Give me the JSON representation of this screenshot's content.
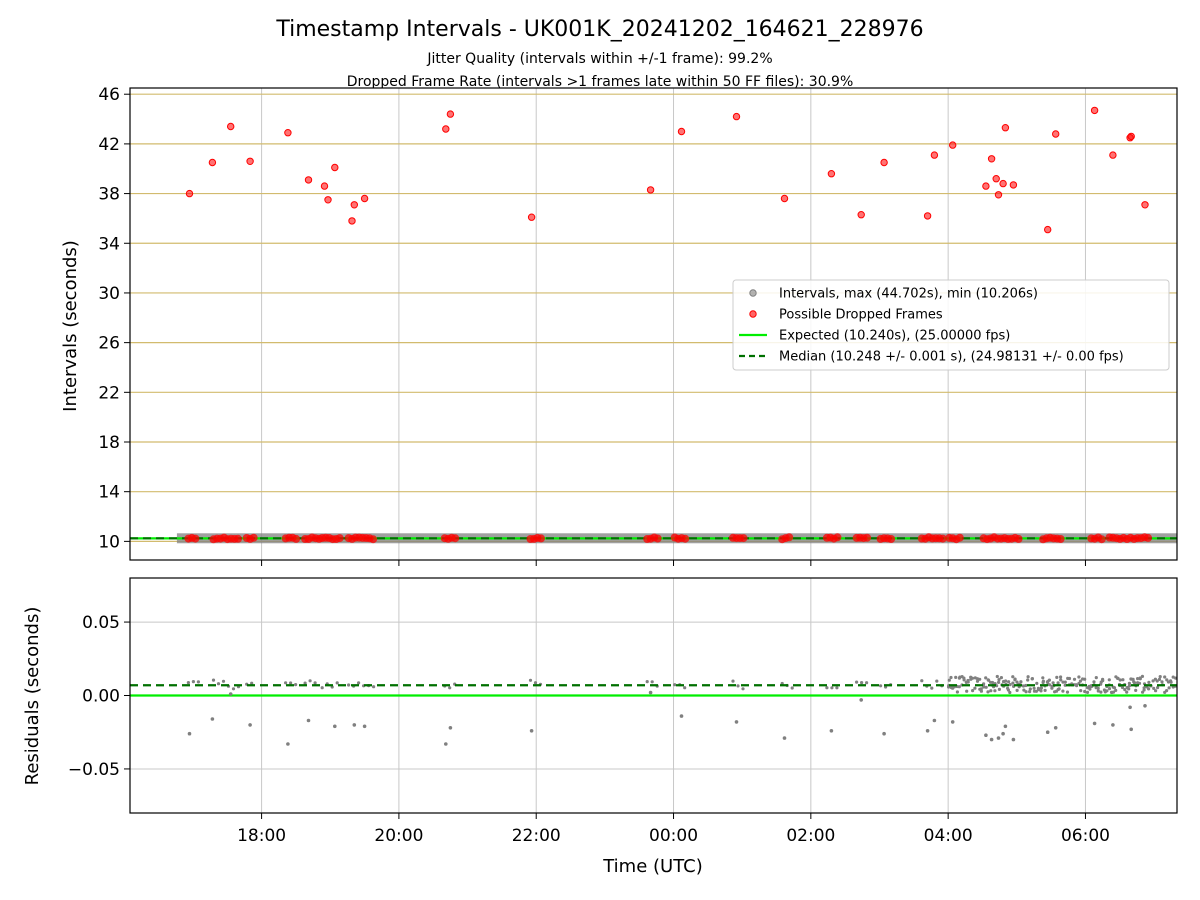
{
  "title": "Timestamp Intervals - UK001K_20241202_164621_228976",
  "subtitle1": "Jitter Quality (intervals within +/-1 frame): 99.2%",
  "subtitle2": "Dropped Frame Rate (intervals >1 frames late within 50 FF files): 30.9%",
  "colors": {
    "intervals": "#808080",
    "dropped": "#ff0000",
    "expected": "#00ee00",
    "median": "#007000",
    "hgrid_top": "#d2bb6e",
    "grid": "#c8c8c8"
  },
  "chart_data": [
    {
      "type": "scatter",
      "name": "intervals-panel",
      "xlabel": "",
      "ylabel": "Intervals (seconds)",
      "xlim": [
        "16:05",
        "07:20"
      ],
      "ylim": [
        8.5,
        46.5
      ],
      "yticks": [
        10,
        14,
        18,
        22,
        26,
        30,
        34,
        38,
        42,
        46
      ],
      "grid": true,
      "legend_position": "center-right",
      "legend": [
        {
          "label": "Intervals, max (44.702s), min (10.206s)",
          "kind": "dot",
          "color": "#808080"
        },
        {
          "label": "Possible Dropped Frames",
          "kind": "dot",
          "color": "#ff0000"
        },
        {
          "label": "Expected (10.240s), (25.00000 fps)",
          "kind": "line",
          "color": "#00ee00"
        },
        {
          "label": "Median (10.248 +/- 0.001 s), (24.98131 +/- 0.00 fps)",
          "kind": "dashed",
          "color": "#007000"
        }
      ],
      "series": [
        {
          "name": "Possible Dropped Frames",
          "points": [
            [
              "16:57",
              38.0
            ],
            [
              "17:17",
              40.5
            ],
            [
              "17:33",
              43.4
            ],
            [
              "17:50",
              40.6
            ],
            [
              "18:23",
              42.9
            ],
            [
              "18:41",
              39.1
            ],
            [
              "18:55",
              38.6
            ],
            [
              "18:58",
              37.5
            ],
            [
              "19:04",
              40.1
            ],
            [
              "19:19",
              35.8
            ],
            [
              "19:21",
              37.1
            ],
            [
              "19:30",
              37.6
            ],
            [
              "20:41",
              43.2
            ],
            [
              "20:45",
              44.4
            ],
            [
              "21:56",
              36.1
            ],
            [
              "23:40",
              38.3
            ],
            [
              "00:07",
              43.0
            ],
            [
              "00:55",
              44.2
            ],
            [
              "01:37",
              37.6
            ],
            [
              "02:18",
              39.6
            ],
            [
              "02:44",
              36.3
            ],
            [
              "03:04",
              40.5
            ],
            [
              "03:42",
              36.2
            ],
            [
              "03:48",
              41.1
            ],
            [
              "04:04",
              41.9
            ],
            [
              "04:33",
              38.6
            ],
            [
              "04:38",
              40.8
            ],
            [
              "04:42",
              39.2
            ],
            [
              "04:44",
              37.9
            ],
            [
              "04:48",
              38.8
            ],
            [
              "04:50",
              43.3
            ],
            [
              "04:57",
              38.7
            ],
            [
              "05:27",
              35.1
            ],
            [
              "05:34",
              42.8
            ],
            [
              "06:08",
              44.7
            ],
            [
              "06:24",
              41.1
            ],
            [
              "06:39",
              42.5
            ],
            [
              "06:40",
              42.6
            ],
            [
              "06:52",
              37.1
            ]
          ]
        },
        {
          "name": "Expected",
          "y": 10.24
        },
        {
          "name": "Median",
          "y": 10.248
        }
      ]
    },
    {
      "type": "scatter",
      "name": "residuals-panel",
      "xlabel": "Time (UTC)",
      "ylabel": "Residuals (seconds)",
      "xlim": [
        "16:05",
        "07:20"
      ],
      "ylim": [
        -0.08,
        0.08
      ],
      "yticks": [
        0.05,
        0.0,
        -0.05
      ],
      "ytick_labels": [
        "0.05",
        "0.00",
        "−0.05"
      ],
      "xticks": [
        "18:00",
        "20:00",
        "22:00",
        "00:00",
        "02:00",
        "04:00",
        "06:00"
      ],
      "grid": true,
      "series": [
        {
          "name": "Residual outliers",
          "points": [
            [
              "16:57",
              -0.026
            ],
            [
              "17:17",
              -0.016
            ],
            [
              "17:33",
              0.001
            ],
            [
              "17:50",
              -0.02
            ],
            [
              "18:23",
              -0.033
            ],
            [
              "18:41",
              -0.017
            ],
            [
              "19:04",
              -0.021
            ],
            [
              "19:21",
              -0.02
            ],
            [
              "19:30",
              -0.021
            ],
            [
              "20:41",
              -0.033
            ],
            [
              "20:45",
              -0.022
            ],
            [
              "21:56",
              -0.024
            ],
            [
              "23:40",
              0.002
            ],
            [
              "00:07",
              -0.014
            ],
            [
              "00:55",
              -0.018
            ],
            [
              "01:37",
              -0.029
            ],
            [
              "02:18",
              -0.024
            ],
            [
              "02:44",
              -0.003
            ],
            [
              "03:04",
              -0.026
            ],
            [
              "03:42",
              -0.024
            ],
            [
              "03:48",
              -0.017
            ],
            [
              "04:04",
              -0.018
            ],
            [
              "04:33",
              -0.027
            ],
            [
              "04:38",
              -0.03
            ],
            [
              "04:44",
              -0.029
            ],
            [
              "04:48",
              -0.026
            ],
            [
              "04:50",
              -0.021
            ],
            [
              "04:57",
              -0.03
            ],
            [
              "05:27",
              -0.025
            ],
            [
              "05:34",
              -0.022
            ],
            [
              "06:08",
              -0.019
            ],
            [
              "06:24",
              -0.02
            ],
            [
              "06:39",
              -0.008
            ],
            [
              "06:40",
              -0.023
            ],
            [
              "06:52",
              -0.007
            ]
          ]
        },
        {
          "name": "Expected",
          "y": 0.0
        },
        {
          "name": "Median",
          "y": 0.007
        }
      ]
    }
  ]
}
